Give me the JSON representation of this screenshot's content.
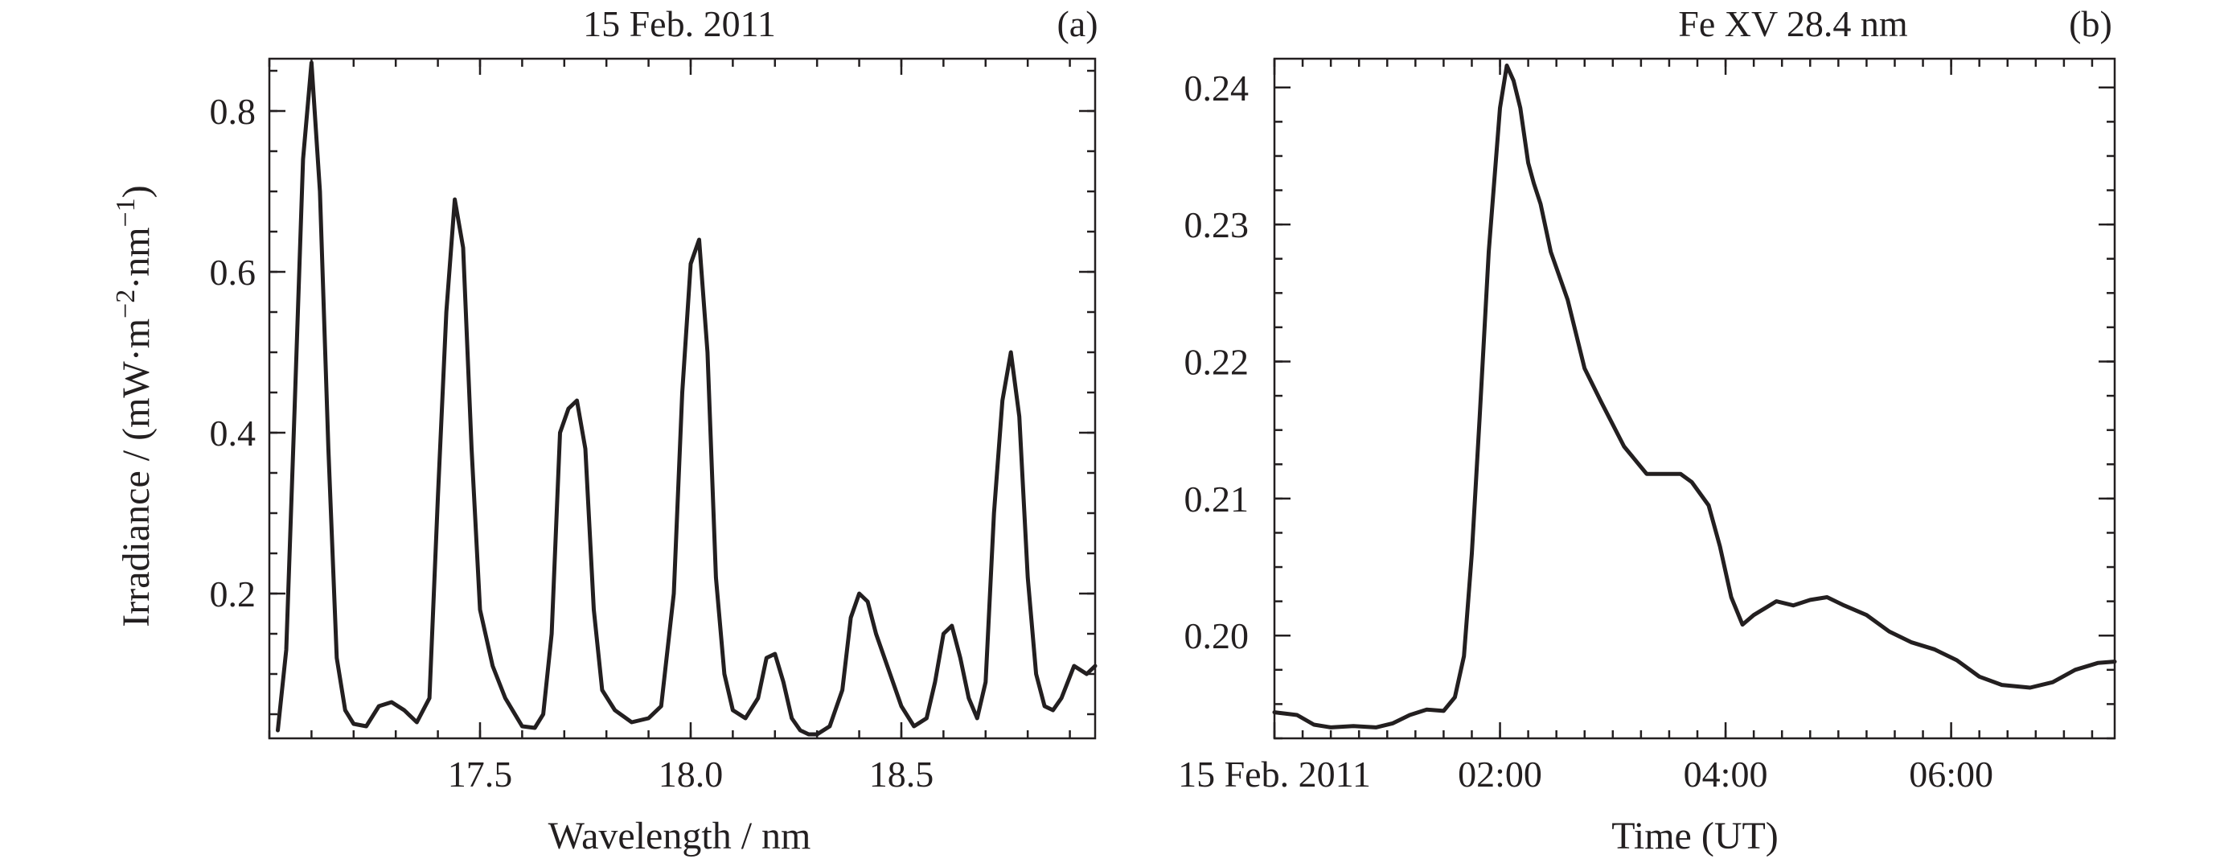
{
  "chart_data": [
    {
      "type": "line",
      "title": "15 Feb. 2011",
      "panel_label": "(a)",
      "xlabel": "Wavelength / nm",
      "ylabel": "Irradiance / (mW·m⁻²·nm⁻¹)",
      "xlim": [
        17.0,
        18.96
      ],
      "ylim": [
        0.02,
        0.865
      ],
      "xticks": [
        17.5,
        18.0,
        18.5
      ],
      "xtick_labels": [
        "17.5",
        "18.0",
        "18.5"
      ],
      "yticks": [
        0.2,
        0.4,
        0.6,
        0.8
      ],
      "ytick_labels": [
        "0.2",
        "0.4",
        "0.6",
        "0.8"
      ],
      "grid": false,
      "series": [
        {
          "x": [
            17.02,
            17.04,
            17.06,
            17.08,
            17.1,
            17.12,
            17.14,
            17.16,
            17.18,
            17.2,
            17.23,
            17.26,
            17.29,
            17.32,
            17.35,
            17.38,
            17.4,
            17.42,
            17.44,
            17.46,
            17.48,
            17.5,
            17.53,
            17.56,
            17.6,
            17.63,
            17.65,
            17.67,
            17.69,
            17.71,
            17.73,
            17.75,
            17.77,
            17.79,
            17.82,
            17.86,
            17.9,
            17.93,
            17.96,
            17.98,
            18.0,
            18.02,
            18.04,
            18.06,
            18.08,
            18.1,
            18.13,
            18.16,
            18.18,
            18.2,
            18.22,
            18.24,
            18.26,
            18.28,
            18.3,
            18.33,
            18.36,
            18.38,
            18.4,
            18.42,
            18.44,
            18.46,
            18.48,
            18.5,
            18.53,
            18.56,
            18.58,
            18.6,
            18.62,
            18.64,
            18.66,
            18.68,
            18.7,
            18.72,
            18.74,
            18.76,
            18.78,
            18.8,
            18.82,
            18.84,
            18.86,
            18.88,
            18.91,
            18.94,
            18.96
          ],
          "y": [
            0.03,
            0.13,
            0.43,
            0.74,
            0.86,
            0.7,
            0.38,
            0.12,
            0.055,
            0.038,
            0.035,
            0.06,
            0.065,
            0.055,
            0.04,
            0.07,
            0.32,
            0.55,
            0.69,
            0.63,
            0.38,
            0.18,
            0.11,
            0.07,
            0.035,
            0.033,
            0.05,
            0.15,
            0.4,
            0.43,
            0.44,
            0.38,
            0.18,
            0.08,
            0.055,
            0.04,
            0.045,
            0.06,
            0.2,
            0.45,
            0.61,
            0.64,
            0.5,
            0.22,
            0.1,
            0.055,
            0.045,
            0.07,
            0.12,
            0.125,
            0.09,
            0.045,
            0.03,
            0.025,
            0.025,
            0.035,
            0.08,
            0.17,
            0.2,
            0.19,
            0.15,
            0.12,
            0.09,
            0.06,
            0.035,
            0.045,
            0.09,
            0.15,
            0.16,
            0.12,
            0.07,
            0.045,
            0.09,
            0.3,
            0.44,
            0.5,
            0.42,
            0.22,
            0.1,
            0.06,
            0.055,
            0.07,
            0.11,
            0.1,
            0.11
          ]
        }
      ]
    },
    {
      "type": "line",
      "title": "Fe XV 28.4 nm",
      "panel_label": "(b)",
      "xlabel": "Time (UT)",
      "ylabel": "",
      "xlim": [
        0.0,
        7.45
      ],
      "ylim": [
        0.1925,
        0.2421
      ],
      "xticks": [
        0.0,
        2.0,
        4.0,
        6.0
      ],
      "xtick_labels": [
        "15 Feb. 2011",
        "02:00",
        "04:00",
        "06:00"
      ],
      "yticks": [
        0.2,
        0.21,
        0.22,
        0.23,
        0.24
      ],
      "ytick_labels": [
        "0.20",
        "0.21",
        "0.22",
        "0.23",
        "0.24"
      ],
      "grid": false,
      "series": [
        {
          "x": [
            0.0,
            0.2,
            0.35,
            0.5,
            0.7,
            0.9,
            1.05,
            1.2,
            1.35,
            1.5,
            1.6,
            1.68,
            1.75,
            1.82,
            1.9,
            2.0,
            2.06,
            2.12,
            2.18,
            2.25,
            2.3,
            2.36,
            2.45,
            2.6,
            2.75,
            2.9,
            3.1,
            3.3,
            3.45,
            3.6,
            3.7,
            3.85,
            3.95,
            4.05,
            4.15,
            4.25,
            4.35,
            4.45,
            4.6,
            4.75,
            4.9,
            5.05,
            5.25,
            5.45,
            5.65,
            5.85,
            6.05,
            6.25,
            6.45,
            6.7,
            6.9,
            7.1,
            7.3,
            7.45
          ],
          "y": [
            0.1944,
            0.1942,
            0.1935,
            0.1933,
            0.1934,
            0.1933,
            0.1936,
            0.1942,
            0.1946,
            0.1945,
            0.1955,
            0.1985,
            0.206,
            0.216,
            0.228,
            0.2385,
            0.2416,
            0.2405,
            0.2385,
            0.2345,
            0.233,
            0.2315,
            0.228,
            0.2245,
            0.2195,
            0.217,
            0.2138,
            0.2118,
            0.2118,
            0.2118,
            0.2112,
            0.2095,
            0.2065,
            0.2028,
            0.2008,
            0.2015,
            0.202,
            0.2025,
            0.2022,
            0.2026,
            0.2028,
            0.2022,
            0.2015,
            0.2003,
            0.1995,
            0.199,
            0.1982,
            0.197,
            0.1964,
            0.1962,
            0.1966,
            0.1975,
            0.198,
            0.1981
          ]
        }
      ]
    }
  ]
}
